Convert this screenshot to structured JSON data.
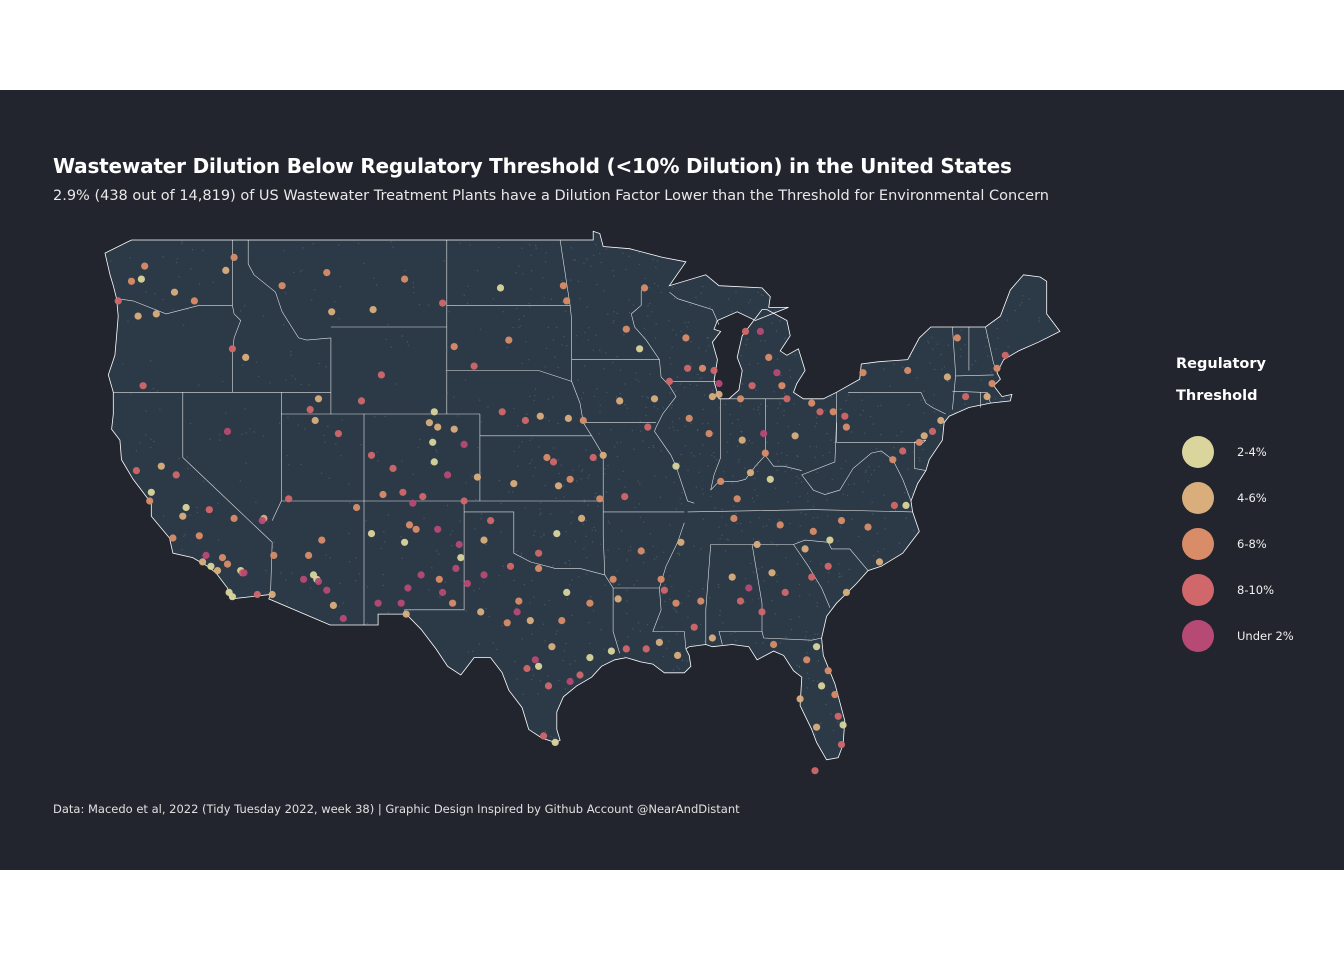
{
  "title": "Wastewater Dilution Below Regulatory Threshold (<10% Dilution) in the United States",
  "subtitle": "2.9% (438 out of 14,819) of US Wastewater Treatment Plants have a Dilution Factor Lower than the Threshold for Environmental Concern",
  "caption": "Data: Macedo et al, 2022 (Tidy Tuesday 2022, week 38) | Graphic Design Inspired by Github Account @NearAndDistant",
  "colors": {
    "background": "#22252d",
    "land": "#2c3a48",
    "state_border": "#ffffff",
    "page": "#ffffff"
  },
  "legend": {
    "title_line1": "Regulatory",
    "title_line2": "Threshold",
    "items": [
      {
        "label": "2-4%",
        "color": "#d9d59c"
      },
      {
        "label": "4-6%",
        "color": "#d9ae7c"
      },
      {
        "label": "6-8%",
        "color": "#d98c68"
      },
      {
        "label": "8-10%",
        "color": "#d0676a"
      },
      {
        "label": "Under 2%",
        "color": "#b64a75"
      }
    ]
  },
  "chart_data": {
    "type": "scatter",
    "x_unit": "degrees longitude",
    "y_unit": "degrees latitude",
    "series": [
      {
        "name": "2-4%",
        "points": [
          [
            -122.5,
            47.2
          ],
          [
            -117.2,
            32.8
          ],
          [
            -118.3,
            34.0
          ],
          [
            -121.9,
            37.4
          ],
          [
            -104.9,
            39.7
          ],
          [
            -104.8,
            38.8
          ],
          [
            -97.4,
            35.5
          ],
          [
            -95.4,
            29.8
          ],
          [
            -97.5,
            25.9
          ],
          [
            -96.8,
            32.8
          ],
          [
            -94.1,
            30.1
          ],
          [
            -81.4,
            28.5
          ],
          [
            -80.1,
            26.7
          ],
          [
            -84.5,
            38.0
          ],
          [
            -92.4,
            44.0
          ],
          [
            -100.8,
            46.8
          ],
          [
            -106.6,
            35.1
          ],
          [
            -111.9,
            33.4
          ],
          [
            -112.1,
            33.6
          ],
          [
            -116.5,
            33.8
          ],
          [
            -104.8,
            41.1
          ],
          [
            -98.5,
            29.4
          ],
          [
            -90.2,
            38.6
          ],
          [
            -80.9,
            35.2
          ],
          [
            -76.3,
            36.8
          ],
          [
            -81.7,
            30.3
          ],
          [
            -117.0,
            32.6
          ],
          [
            -119.8,
            36.7
          ],
          [
            -108.6,
            35.5
          ],
          [
            -103.2,
            34.4
          ]
        ]
      },
      {
        "name": "4-6%",
        "points": [
          [
            -121.6,
            45.6
          ],
          [
            -122.7,
            45.5
          ],
          [
            -120.5,
            46.6
          ],
          [
            -117.4,
            47.6
          ],
          [
            -116.2,
            43.6
          ],
          [
            -111.0,
            45.7
          ],
          [
            -108.5,
            45.8
          ],
          [
            -118.8,
            34.2
          ],
          [
            -117.9,
            33.8
          ],
          [
            -121.3,
            38.6
          ],
          [
            -120.0,
            36.3
          ],
          [
            -115.1,
            36.2
          ],
          [
            -112.0,
            40.7
          ],
          [
            -111.8,
            41.7
          ],
          [
            -105.1,
            40.6
          ],
          [
            -104.6,
            40.4
          ],
          [
            -103.6,
            40.3
          ],
          [
            -102.2,
            38.1
          ],
          [
            -100.0,
            37.8
          ],
          [
            -97.3,
            37.7
          ],
          [
            -95.9,
            36.2
          ],
          [
            -94.6,
            39.1
          ],
          [
            -93.6,
            41.6
          ],
          [
            -91.5,
            41.7
          ],
          [
            -88.0,
            41.8
          ],
          [
            -87.6,
            41.9
          ],
          [
            -86.2,
            39.8
          ],
          [
            -85.7,
            38.3
          ],
          [
            -84.4,
            33.7
          ],
          [
            -86.8,
            33.5
          ],
          [
            -90.1,
            29.9
          ],
          [
            -91.2,
            30.5
          ],
          [
            -93.7,
            32.5
          ],
          [
            -97.7,
            30.3
          ],
          [
            -99.0,
            31.5
          ],
          [
            -101.8,
            35.2
          ],
          [
            -102.0,
            31.9
          ],
          [
            -106.5,
            31.8
          ],
          [
            -110.9,
            32.2
          ],
          [
            -114.6,
            32.7
          ],
          [
            -96.7,
            40.8
          ],
          [
            -98.4,
            40.9
          ],
          [
            -83.0,
            40.0
          ],
          [
            -82.4,
            34.8
          ],
          [
            -79.9,
            32.8
          ],
          [
            -77.9,
            34.2
          ],
          [
            -75.2,
            40.0
          ],
          [
            -74.2,
            40.7
          ],
          [
            -73.8,
            42.7
          ],
          [
            -71.4,
            41.8
          ],
          [
            -82.7,
            27.9
          ],
          [
            -81.7,
            26.6
          ],
          [
            -88.0,
            30.7
          ],
          [
            -85.3,
            35.0
          ],
          [
            -89.9,
            35.1
          ]
        ]
      },
      {
        "name": "6-8%",
        "points": [
          [
            -123.1,
            47.1
          ],
          [
            -122.3,
            47.8
          ],
          [
            -119.3,
            46.2
          ],
          [
            -116.9,
            48.2
          ],
          [
            -114.0,
            46.9
          ],
          [
            -111.3,
            47.5
          ],
          [
            -106.6,
            47.2
          ],
          [
            -103.6,
            44.1
          ],
          [
            -100.3,
            44.4
          ],
          [
            -97.0,
            46.9
          ],
          [
            -96.8,
            46.2
          ],
          [
            -122.0,
            37.0
          ],
          [
            -120.6,
            35.3
          ],
          [
            -117.3,
            34.1
          ],
          [
            -117.6,
            34.4
          ],
          [
            -114.5,
            34.5
          ],
          [
            -112.4,
            34.5
          ],
          [
            -111.6,
            35.2
          ],
          [
            -109.5,
            36.7
          ],
          [
            -107.9,
            37.3
          ],
          [
            -106.3,
            35.9
          ],
          [
            -105.9,
            35.7
          ],
          [
            -104.5,
            33.4
          ],
          [
            -103.7,
            32.3
          ],
          [
            -100.4,
            31.4
          ],
          [
            -99.7,
            32.4
          ],
          [
            -98.5,
            33.9
          ],
          [
            -97.1,
            31.5
          ],
          [
            -95.4,
            32.3
          ],
          [
            -94.0,
            33.4
          ],
          [
            -92.3,
            34.7
          ],
          [
            -94.8,
            37.1
          ],
          [
            -96.6,
            38.0
          ],
          [
            -98.0,
            39.0
          ],
          [
            -95.8,
            40.7
          ],
          [
            -93.2,
            44.9
          ],
          [
            -92.1,
            46.8
          ],
          [
            -89.6,
            44.5
          ],
          [
            -88.6,
            43.1
          ],
          [
            -89.4,
            40.8
          ],
          [
            -88.2,
            40.1
          ],
          [
            -87.5,
            37.9
          ],
          [
            -86.5,
            37.1
          ],
          [
            -84.8,
            39.2
          ],
          [
            -83.8,
            42.3
          ],
          [
            -84.6,
            43.6
          ],
          [
            -86.3,
            41.7
          ],
          [
            -82.0,
            41.5
          ],
          [
            -80.7,
            41.1
          ],
          [
            -79.9,
            40.4
          ],
          [
            -77.1,
            38.9
          ],
          [
            -78.6,
            35.8
          ],
          [
            -80.2,
            36.1
          ],
          [
            -81.9,
            35.6
          ],
          [
            -83.9,
            35.9
          ],
          [
            -86.7,
            36.2
          ],
          [
            -88.7,
            32.4
          ],
          [
            -90.2,
            32.3
          ],
          [
            -91.1,
            33.4
          ],
          [
            -84.3,
            30.4
          ],
          [
            -82.3,
            29.7
          ],
          [
            -81.0,
            29.2
          ],
          [
            -80.6,
            28.1
          ],
          [
            -75.5,
            39.7
          ],
          [
            -71.1,
            42.4
          ],
          [
            -70.8,
            43.1
          ],
          [
            -73.2,
            44.5
          ],
          [
            -76.2,
            43.0
          ],
          [
            -78.9,
            42.9
          ],
          [
            -116.9,
            36.2
          ],
          [
            -119.0,
            35.4
          ]
        ]
      },
      {
        "name": "8-10%",
        "points": [
          [
            -123.9,
            46.2
          ],
          [
            -122.4,
            42.3
          ],
          [
            -117.0,
            44.0
          ],
          [
            -112.3,
            41.2
          ],
          [
            -110.6,
            40.1
          ],
          [
            -108.6,
            39.1
          ],
          [
            -107.3,
            38.5
          ],
          [
            -106.7,
            37.4
          ],
          [
            -105.5,
            37.2
          ],
          [
            -103.0,
            37.0
          ],
          [
            -101.4,
            36.1
          ],
          [
            -100.2,
            34.0
          ],
          [
            -98.5,
            34.6
          ],
          [
            -97.9,
            28.5
          ],
          [
            -99.2,
            29.3
          ],
          [
            -98.2,
            26.2
          ],
          [
            -96.0,
            29.0
          ],
          [
            -93.2,
            30.2
          ],
          [
            -92.0,
            30.2
          ],
          [
            -90.9,
            32.9
          ],
          [
            -89.1,
            31.2
          ],
          [
            -86.3,
            32.4
          ],
          [
            -85.0,
            31.9
          ],
          [
            -83.6,
            32.8
          ],
          [
            -82.0,
            33.5
          ],
          [
            -81.0,
            34.0
          ],
          [
            -77.0,
            36.8
          ],
          [
            -76.5,
            39.3
          ],
          [
            -74.7,
            40.2
          ],
          [
            -72.7,
            41.8
          ],
          [
            -70.3,
            43.7
          ],
          [
            -80.0,
            40.9
          ],
          [
            -81.5,
            41.1
          ],
          [
            -83.5,
            41.7
          ],
          [
            -85.6,
            42.3
          ],
          [
            -86.0,
            44.8
          ],
          [
            -87.9,
            43.0
          ],
          [
            -89.5,
            43.1
          ],
          [
            -90.6,
            42.5
          ],
          [
            -91.9,
            40.4
          ],
          [
            -93.3,
            37.2
          ],
          [
            -95.2,
            39.0
          ],
          [
            -97.6,
            38.8
          ],
          [
            -99.3,
            40.7
          ],
          [
            -100.7,
            41.1
          ],
          [
            -102.4,
            43.2
          ],
          [
            -104.3,
            46.1
          ],
          [
            -108.0,
            42.8
          ],
          [
            -109.2,
            41.6
          ],
          [
            -113.6,
            37.1
          ],
          [
            -115.5,
            32.7
          ],
          [
            -116.4,
            33.7
          ],
          [
            -118.4,
            36.6
          ],
          [
            -120.4,
            38.2
          ],
          [
            -122.8,
            38.4
          ],
          [
            -80.4,
            27.1
          ],
          [
            -81.8,
            24.6
          ],
          [
            -80.2,
            25.8
          ]
        ]
      },
      {
        "name": "Under 2%",
        "points": [
          [
            -117.3,
            40.2
          ],
          [
            -118.6,
            34.5
          ],
          [
            -116.3,
            33.7
          ],
          [
            -115.2,
            36.1
          ],
          [
            -112.7,
            33.4
          ],
          [
            -111.8,
            33.3
          ],
          [
            -111.3,
            32.9
          ],
          [
            -110.3,
            31.6
          ],
          [
            -108.2,
            32.3
          ],
          [
            -106.8,
            32.3
          ],
          [
            -106.4,
            33.0
          ],
          [
            -105.6,
            33.6
          ],
          [
            -104.3,
            32.8
          ],
          [
            -103.5,
            33.9
          ],
          [
            -102.8,
            33.2
          ],
          [
            -101.8,
            33.6
          ],
          [
            -103.3,
            35.0
          ],
          [
            -104.6,
            35.7
          ],
          [
            -106.1,
            36.9
          ],
          [
            -104.0,
            38.2
          ],
          [
            -103.0,
            39.6
          ],
          [
            -85.1,
            44.8
          ],
          [
            -87.6,
            42.4
          ],
          [
            -84.1,
            42.9
          ],
          [
            -84.9,
            40.1
          ],
          [
            -85.8,
            33.0
          ],
          [
            -96.6,
            28.7
          ],
          [
            -98.7,
            29.7
          ],
          [
            -99.8,
            31.9
          ]
        ]
      }
    ]
  }
}
